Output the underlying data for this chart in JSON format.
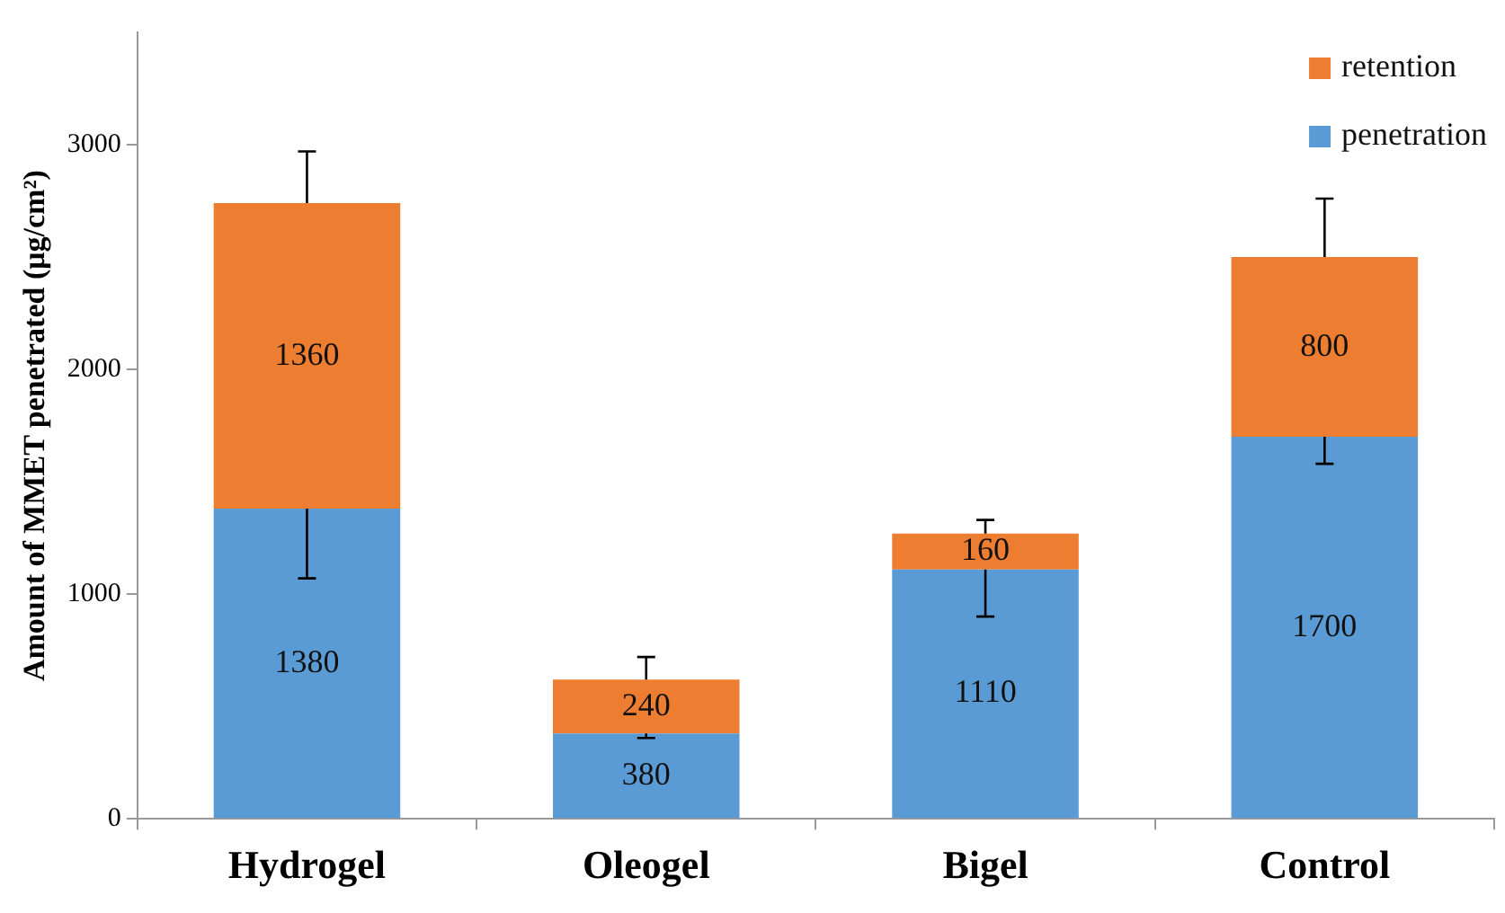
{
  "chart_data": {
    "type": "bar",
    "stacked": true,
    "categories": [
      "Hydrogel",
      "Oleogel",
      "Bigel",
      "Control"
    ],
    "series": [
      {
        "name": "penetration",
        "color": "#5b9bd5",
        "values": [
          1380,
          380,
          1110,
          1700
        ],
        "errors": [
          [
            1070,
            1380
          ],
          [
            360,
            380
          ],
          [
            900,
            1110
          ],
          [
            1580,
            1700
          ]
        ]
      },
      {
        "name": "retention",
        "color": "#ed7d31",
        "values": [
          1360,
          240,
          160,
          800
        ],
        "errors": [
          [
            2740,
            2970
          ],
          [
            620,
            720
          ],
          [
            1270,
            1330
          ],
          [
            2500,
            2760
          ]
        ]
      }
    ],
    "ylabel": "Amount of MMET penetrated (μg/cm²)",
    "ylim": [
      0,
      3500
    ],
    "yticks": [
      0,
      1000,
      2000,
      3000
    ],
    "grid": false,
    "legend": "top right",
    "data_labels": true
  }
}
